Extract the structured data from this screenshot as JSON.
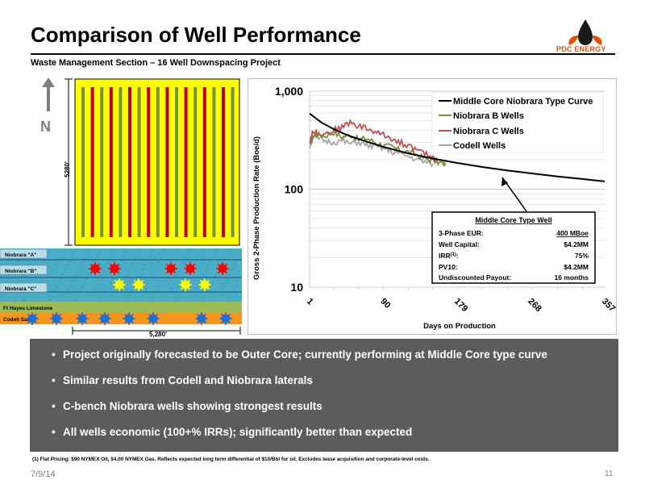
{
  "title": "Comparison of Well Performance",
  "subtitle": "Waste Management Section – 16 Well Downspacing Project",
  "logo": {
    "text": "PDC ENERGY",
    "icon": "flame-drop-logo-icon",
    "color": "#e35205"
  },
  "diagram": {
    "north_label": "N",
    "dim_vertical": "5280'",
    "dim_horizontal": "5,280'",
    "layers": [
      "Niobrara \"A\"",
      "Niobrara \"B\"",
      "Niobrara \"C\"",
      "Ft Hayes Limestone",
      "Codell Sand"
    ],
    "colors": {
      "yellow": "#ffff00",
      "green": "#76923c",
      "red": "#c00000",
      "blue": "#1f6fd0",
      "orange": "#f7941d",
      "teal": "#4bacc6"
    }
  },
  "chart_data": {
    "type": "line",
    "ylabel": "Gross 2-Phase Production Rate  (Boe/d)",
    "xlabel": "Days on Production",
    "yscale": "log",
    "ylim": [
      10,
      1000
    ],
    "xlim": [
      1,
      357
    ],
    "y_ticks": [
      "1,000",
      "100",
      "10"
    ],
    "x_ticks": [
      "1",
      "90",
      "179",
      "268",
      "357"
    ],
    "legend_position": "top-right",
    "series": [
      {
        "name": "Middle Core Niobrara Type Curve",
        "color": "#000000",
        "x": [
          1,
          15,
          30,
          45,
          60,
          90,
          120,
          150,
          179,
          210,
          240,
          268,
          300,
          330,
          357
        ],
        "y": [
          590,
          480,
          410,
          360,
          325,
          270,
          232,
          205,
          185,
          168,
          155,
          145,
          135,
          127,
          120
        ]
      },
      {
        "name": "Niobrara B Wells",
        "color": "#76923c",
        "x": [
          1,
          5,
          10,
          20,
          30,
          40,
          50,
          60,
          70,
          80,
          90,
          100,
          110,
          120,
          130,
          140,
          150,
          160,
          165
        ],
        "y": [
          280,
          350,
          360,
          350,
          380,
          340,
          360,
          320,
          330,
          300,
          280,
          270,
          250,
          240,
          225,
          205,
          195,
          185,
          175
        ]
      },
      {
        "name": "Niobrara C Wells",
        "color": "#c0504d",
        "x": [
          1,
          5,
          10,
          20,
          30,
          40,
          50,
          60,
          70,
          80,
          90,
          100,
          110,
          120,
          130,
          140,
          150,
          155
        ],
        "y": [
          300,
          390,
          380,
          370,
          400,
          430,
          480,
          440,
          420,
          380,
          360,
          330,
          300,
          280,
          250,
          230,
          210,
          195
        ]
      },
      {
        "name": "Codell Wells",
        "color": "#a6a6a6",
        "x": [
          1,
          5,
          10,
          20,
          30,
          40,
          50,
          60,
          70,
          80,
          90,
          100,
          110,
          120,
          130,
          140,
          150
        ],
        "y": [
          270,
          340,
          330,
          310,
          300,
          310,
          290,
          300,
          280,
          270,
          260,
          240,
          230,
          215,
          200,
          190,
          180
        ]
      }
    ],
    "annotation": {
      "title": "Middle Core Type Well",
      "rows": [
        {
          "label": "3-Phase EUR:",
          "value": "400 MBoe"
        },
        {
          "label": "Well Capital:",
          "value": "$4.2MM"
        },
        {
          "label": "IRR",
          "sup": "(1)",
          "label_suffix": ":",
          "value": "75%"
        },
        {
          "label": "PV10:",
          "value": "$4.2MM"
        },
        {
          "label": "Undiscounted Payout:",
          "value": "16 months"
        }
      ]
    }
  },
  "bullets": [
    "Project originally forecasted to be Outer Core; currently performing at Middle Core type curve",
    "Similar results from Codell and Niobrara laterals",
    "C-bench Niobrara wells showing strongest results",
    "All wells economic (100+% IRRs); significantly better than expected"
  ],
  "footnote": "(1) Flat Pricing: $90 NYMEX Oil, $4.00 NYMEX Gas. Reflects expected long term differential of $10/Bbl for oil. Excludes lease acquisition and corporate-level costs.",
  "footer": {
    "date": "7/9/14",
    "page": "11"
  }
}
